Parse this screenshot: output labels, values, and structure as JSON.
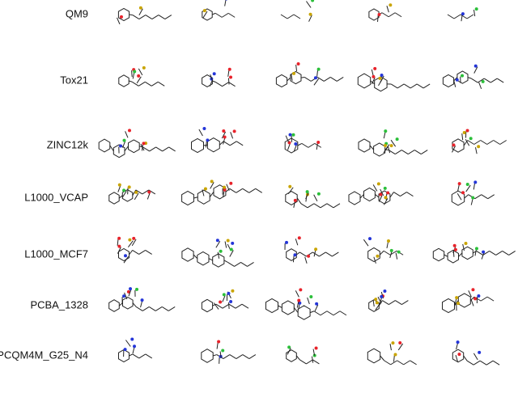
{
  "figure": {
    "rows": [
      {
        "label": "QM9"
      },
      {
        "label": "Tox21"
      },
      {
        "label": "ZINC12k"
      },
      {
        "label": "L1000_VCAP"
      },
      {
        "label": "L1000_MCF7"
      },
      {
        "label": "PCBA_1328"
      },
      {
        "label": "PCQM4M_G25_N4"
      }
    ]
  }
}
